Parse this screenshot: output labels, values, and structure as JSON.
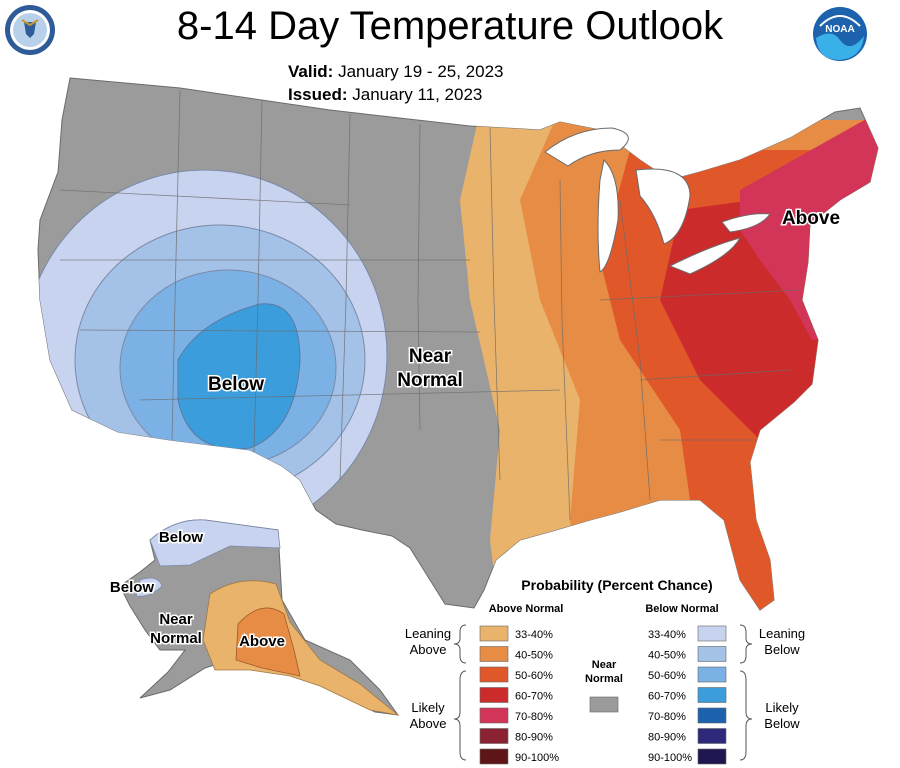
{
  "header": {
    "title": "8-14 Day Temperature Outlook",
    "valid_label": "Valid:",
    "valid_value": "January 19 - 25, 2023",
    "issued_label": "Issued:",
    "issued_value": "January 11, 2023",
    "logo_right_text": "NOAA"
  },
  "map_labels": {
    "below": "Below",
    "near": "Near",
    "normal": "Normal",
    "above": "Above",
    "ak_below1": "Below",
    "ak_below2": "Below",
    "ak_near": "Near",
    "ak_normal": "Normal",
    "ak_above": "Above"
  },
  "legend": {
    "title": "Probability (Percent Chance)",
    "above_header": "Above Normal",
    "below_header": "Below Normal",
    "leaning": "Leaning",
    "above": "Above",
    "below": "Below",
    "likely": "Likely",
    "near": "Near",
    "normal": "Normal",
    "above_items": [
      {
        "label": "33-40%",
        "color": "#e9b36c"
      },
      {
        "label": "40-50%",
        "color": "#e68c44"
      },
      {
        "label": "50-60%",
        "color": "#e0572a"
      },
      {
        "label": "60-70%",
        "color": "#cc2b2b"
      },
      {
        "label": "70-80%",
        "color": "#d23557"
      },
      {
        "label": "80-90%",
        "color": "#8a2232"
      },
      {
        "label": "90-100%",
        "color": "#5e1518"
      }
    ],
    "below_items": [
      {
        "label": "33-40%",
        "color": "#c8d3ef"
      },
      {
        "label": "40-50%",
        "color": "#a4c1e8"
      },
      {
        "label": "50-60%",
        "color": "#7bb1e4"
      },
      {
        "label": "60-70%",
        "color": "#3c9ddc"
      },
      {
        "label": "70-80%",
        "color": "#1c62ad"
      },
      {
        "label": "80-90%",
        "color": "#2e2a7a"
      },
      {
        "label": "90-100%",
        "color": "#1f1750"
      }
    ],
    "near_color": "#9b9b9b"
  },
  "colors": {
    "near_normal": "#9b9b9b",
    "water": "#ffffff",
    "border": "#6b6b6b"
  }
}
